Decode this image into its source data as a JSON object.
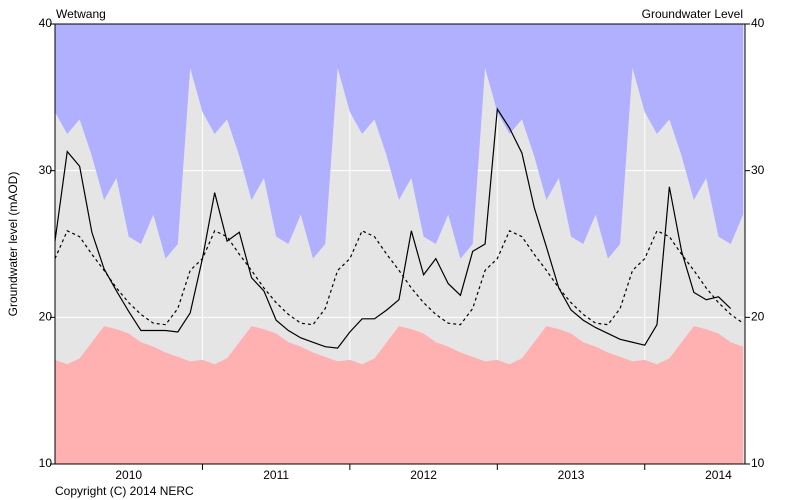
{
  "chart_data": {
    "type": "line",
    "title": "Wetwang",
    "subtitle": "Groundwater Level",
    "y_label": "Groundwater level (mAOD)",
    "footer": "Copyright (C) 2014 NERC",
    "background_color": "#e5e5e5",
    "x": [
      2010,
      2010.083,
      2010.167,
      2010.25,
      2010.333,
      2010.417,
      2010.5,
      2010.583,
      2010.667,
      2010.75,
      2010.833,
      2010.917,
      2011,
      2011.083,
      2011.167,
      2011.25,
      2011.333,
      2011.417,
      2011.5,
      2011.583,
      2011.667,
      2011.75,
      2011.833,
      2011.917,
      2012,
      2012.083,
      2012.167,
      2012.25,
      2012.333,
      2012.417,
      2012.5,
      2012.583,
      2012.667,
      2012.75,
      2012.833,
      2012.917,
      2013,
      2013.083,
      2013.167,
      2013.25,
      2013.333,
      2013.417,
      2013.5,
      2013.583,
      2013.667,
      2013.75,
      2013.833,
      2013.917,
      2014,
      2014.083,
      2014.167,
      2014.25,
      2014.333,
      2014.417,
      2014.5,
      2014.583,
      2014.667
    ],
    "xlim": [
      2010,
      2014.68
    ],
    "xticks": [
      {
        "value": 2010.5,
        "label": "2010"
      },
      {
        "value": 2011.5,
        "label": "2011"
      },
      {
        "value": 2012.5,
        "label": "2012"
      },
      {
        "value": 2013.5,
        "label": "2013"
      },
      {
        "value": 2014.5,
        "label": "2014"
      }
    ],
    "xgrid": [
      2011,
      2012,
      2013,
      2014
    ],
    "ylim": [
      10,
      40
    ],
    "yticks": [
      10,
      20,
      30,
      40
    ],
    "y2lim": [
      10,
      40
    ],
    "y2ticks": [
      10,
      20,
      30,
      40
    ],
    "grid": true,
    "series": [
      {
        "color": "#b0b0ff",
        "fill": "above",
        "values": [
          34.0,
          32.5,
          33.5,
          31.0,
          28.0,
          29.5,
          25.5,
          25.0,
          27.0,
          24.0,
          25.0,
          37.0,
          34.0,
          32.5,
          33.5,
          31.0,
          28.0,
          29.5,
          25.5,
          25.0,
          27.0,
          24.0,
          25.0,
          37.0,
          34.0,
          32.5,
          33.5,
          31.0,
          28.0,
          29.5,
          25.5,
          25.0,
          27.0,
          24.0,
          25.0,
          37.0,
          34.0,
          32.5,
          33.5,
          31.0,
          28.0,
          29.5,
          25.5,
          25.0,
          27.0,
          24.0,
          25.0,
          37.0,
          34.0,
          32.5,
          33.5,
          31.0,
          28.0,
          29.5,
          25.5,
          25.0,
          27.0
        ]
      },
      {
        "color": "#ffb0b0",
        "fill": "below",
        "values": [
          17.1,
          16.8,
          17.2,
          18.3,
          19.4,
          19.2,
          18.9,
          18.3,
          18.0,
          17.6,
          17.3,
          17.0,
          17.1,
          16.8,
          17.2,
          18.3,
          19.4,
          19.2,
          18.9,
          18.3,
          18.0,
          17.6,
          17.3,
          17.0,
          17.1,
          16.8,
          17.2,
          18.3,
          19.4,
          19.2,
          18.9,
          18.3,
          18.0,
          17.6,
          17.3,
          17.0,
          17.1,
          16.8,
          17.2,
          18.3,
          19.4,
          19.2,
          18.9,
          18.3,
          18.0,
          17.6,
          17.3,
          17.0,
          17.1,
          16.8,
          17.2,
          18.3,
          19.4,
          19.2,
          18.9,
          18.3,
          18.0
        ]
      },
      {
        "color": "#000000",
        "dashed": true,
        "values": [
          24.0,
          25.9,
          25.5,
          24.3,
          23.2,
          22.0,
          21.0,
          20.2,
          19.6,
          19.5,
          20.6,
          23.2,
          24.0,
          25.9,
          25.5,
          24.3,
          23.2,
          22.0,
          21.0,
          20.2,
          19.6,
          19.5,
          20.6,
          23.2,
          24.0,
          25.9,
          25.5,
          24.3,
          23.2,
          22.0,
          21.0,
          20.2,
          19.6,
          19.5,
          20.6,
          23.2,
          24.0,
          25.9,
          25.5,
          24.3,
          23.2,
          22.0,
          21.0,
          20.2,
          19.6,
          19.5,
          20.6,
          23.2,
          24.0,
          25.9,
          25.5,
          24.3,
          23.2,
          22.0,
          21.0,
          20.2,
          19.6
        ]
      },
      {
        "color": "#000000",
        "values": [
          25.2,
          31.3,
          30.3,
          25.8,
          23.3,
          21.8,
          20.4,
          19.1,
          19.1,
          19.1,
          19.0,
          20.3,
          24.0,
          28.5,
          25.2,
          25.8,
          22.7,
          21.8,
          19.8,
          19.1,
          18.6,
          18.3,
          18.0,
          17.9,
          19.0,
          19.9,
          19.9,
          20.5,
          21.2,
          25.9,
          22.9,
          24.0,
          22.3,
          21.5,
          24.5,
          25.0,
          34.2,
          32.9,
          31.2,
          27.5,
          24.8,
          22.0,
          20.5,
          19.8,
          19.3,
          18.9,
          18.5,
          18.3,
          18.1,
          19.5,
          28.9,
          24.5,
          21.7,
          21.2,
          21.4,
          20.6,
          null
        ]
      }
    ]
  }
}
